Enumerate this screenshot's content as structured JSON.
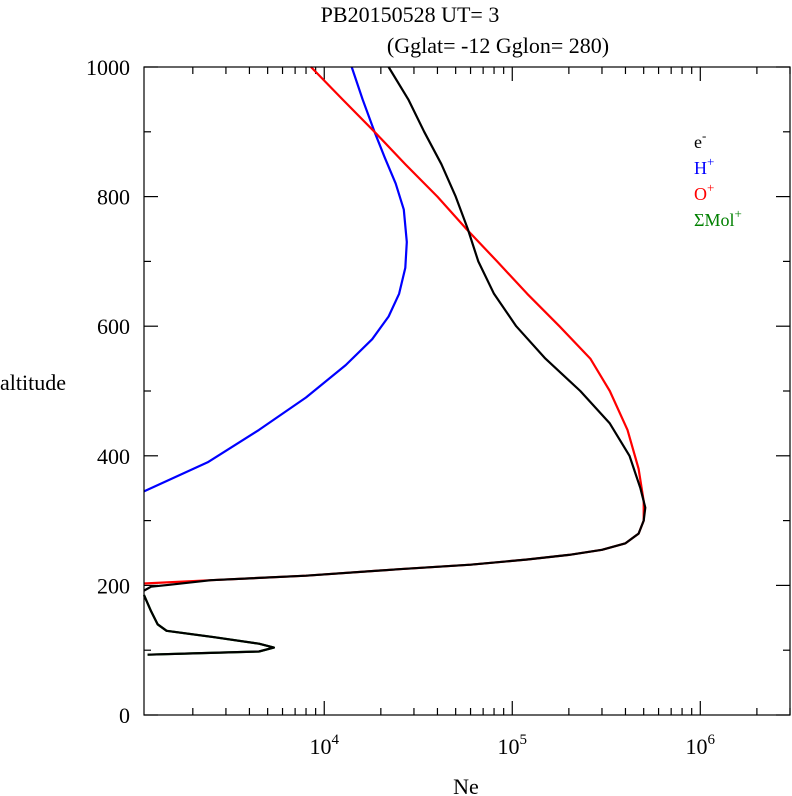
{
  "title_line1": "PB20150528   UT=  3",
  "title_line2": "(Gglat= -12   Gglon=  280)",
  "chart_data": {
    "type": "line",
    "xlabel": "Ne",
    "ylabel": "altitude",
    "xscale": "log",
    "xlim": [
      1100,
      3000000
    ],
    "ylim": [
      0,
      1000
    ],
    "x_major_ticks": [
      10000,
      100000,
      1000000
    ],
    "x_tick_base": "10",
    "x_tick_exponents": [
      "4",
      "5",
      "6"
    ],
    "y_major_ticks": [
      0,
      200,
      400,
      600,
      800,
      1000
    ],
    "y_tick_labels": [
      "0",
      "200",
      "400",
      "600",
      "800",
      "1000"
    ],
    "legend": [
      {
        "base": "e",
        "sup": "-",
        "color": "#000000"
      },
      {
        "base": "H",
        "sup": "+",
        "color": "#0000ff"
      },
      {
        "base": "O",
        "sup": "+",
        "color": "#ff0000"
      },
      {
        "base": "ΣMol",
        "sup": "+",
        "color": "#008000"
      }
    ],
    "legend_position": "top-right",
    "series": [
      {
        "color": "#0000ff",
        "points": [
          [
            14000,
            1000
          ],
          [
            16000,
            950
          ],
          [
            18500,
            900
          ],
          [
            21000,
            860
          ],
          [
            24000,
            820
          ],
          [
            26500,
            780
          ],
          [
            27500,
            730
          ],
          [
            27000,
            690
          ],
          [
            25000,
            650
          ],
          [
            22000,
            615
          ],
          [
            18000,
            580
          ],
          [
            13000,
            540
          ],
          [
            8000,
            490
          ],
          [
            4500,
            440
          ],
          [
            2400,
            390
          ],
          [
            1100,
            345
          ]
        ]
      },
      {
        "color": "#008000",
        "points": [
          [
            1150,
            93
          ],
          [
            2000,
            95
          ],
          [
            4500,
            98
          ],
          [
            5400,
            104
          ],
          [
            4500,
            110
          ],
          [
            2600,
            120
          ],
          [
            1450,
            130
          ],
          [
            1300,
            140
          ],
          [
            1200,
            160
          ],
          [
            1100,
            185
          ]
        ]
      },
      {
        "color": "#ff0000",
        "points": [
          [
            8500,
            1000
          ],
          [
            12500,
            950
          ],
          [
            18500,
            900
          ],
          [
            27000,
            850
          ],
          [
            40000,
            800
          ],
          [
            57000,
            750
          ],
          [
            83000,
            700
          ],
          [
            120000,
            650
          ],
          [
            178000,
            600
          ],
          [
            260000,
            550
          ],
          [
            330000,
            500
          ],
          [
            410000,
            440
          ],
          [
            470000,
            380
          ],
          [
            500000,
            330
          ],
          [
            500000,
            300
          ],
          [
            470000,
            280
          ],
          [
            400000,
            265
          ],
          [
            300000,
            255
          ],
          [
            200000,
            247
          ],
          [
            120000,
            240
          ],
          [
            60000,
            232
          ],
          [
            25000,
            225
          ],
          [
            8000,
            215
          ],
          [
            2500,
            208
          ],
          [
            1100,
            203
          ]
        ]
      },
      {
        "color": "#000000",
        "points": [
          [
            22000,
            1000
          ],
          [
            28000,
            950
          ],
          [
            34000,
            900
          ],
          [
            42000,
            850
          ],
          [
            50000,
            800
          ],
          [
            58000,
            750
          ],
          [
            66000,
            700
          ],
          [
            80000,
            650
          ],
          [
            105000,
            600
          ],
          [
            150000,
            550
          ],
          [
            230000,
            500
          ],
          [
            330000,
            450
          ],
          [
            420000,
            400
          ],
          [
            480000,
            350
          ],
          [
            510000,
            320
          ],
          [
            500000,
            300
          ],
          [
            470000,
            280
          ],
          [
            400000,
            265
          ],
          [
            300000,
            255
          ],
          [
            200000,
            247
          ],
          [
            120000,
            240
          ],
          [
            60000,
            232
          ],
          [
            25000,
            225
          ],
          [
            8000,
            215
          ],
          [
            2500,
            208
          ],
          [
            1500,
            201
          ],
          [
            1200,
            198
          ],
          [
            1100,
            192
          ]
        ]
      },
      {
        "color": "#000000",
        "points": [
          [
            1150,
            93
          ],
          [
            2000,
            95
          ],
          [
            4500,
            98
          ],
          [
            5400,
            104
          ],
          [
            4500,
            110
          ],
          [
            2600,
            120
          ],
          [
            1450,
            130
          ],
          [
            1300,
            140
          ],
          [
            1200,
            160
          ],
          [
            1100,
            185
          ]
        ]
      }
    ]
  }
}
